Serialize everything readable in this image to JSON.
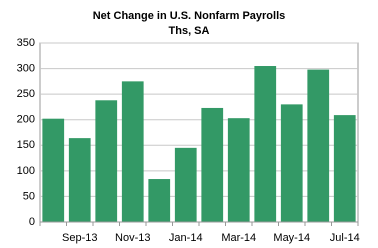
{
  "chart_data": {
    "type": "bar",
    "title": "Net Change in U.S. Nonfarm Payrolls",
    "subtitle": "Ths, SA",
    "categories": [
      null,
      "Sep-13",
      null,
      "Nov-13",
      null,
      "Jan-14",
      null,
      "Mar-14",
      null,
      "May-14",
      null,
      "Jul-14"
    ],
    "values": [
      202,
      164,
      238,
      275,
      84,
      145,
      223,
      203,
      305,
      230,
      298,
      209
    ],
    "color": "#339966",
    "ylim": [
      0,
      350
    ],
    "yticks": [
      0,
      50,
      100,
      150,
      200,
      250,
      300,
      350
    ],
    "grid": true
  }
}
